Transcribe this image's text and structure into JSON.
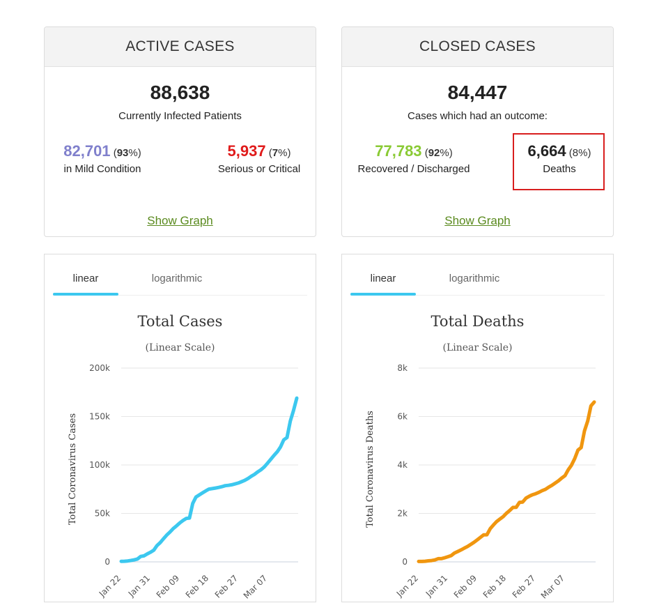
{
  "active_cases": {
    "header": "ACTIVE CASES",
    "total": "88,638",
    "total_label": "Currently Infected Patients",
    "mild": {
      "value": "82,701",
      "pct": "93",
      "label": "in Mild Condition",
      "color": "#8080cc"
    },
    "serious": {
      "value": "5,937",
      "pct": "7",
      "label": "Serious or Critical",
      "color": "#e01b1b"
    },
    "show_graph": "Show Graph"
  },
  "closed_cases": {
    "header": "CLOSED CASES",
    "total": "84,447",
    "total_label": "Cases which had an outcome:",
    "recovered": {
      "value": "77,783",
      "pct": "92",
      "label": "Recovered / Discharged",
      "color": "#8aca34"
    },
    "deaths": {
      "value": "6,664",
      "pct": "8",
      "label": "Deaths",
      "color": "#222222"
    },
    "show_graph": "Show Graph"
  },
  "tabs": {
    "linear": "linear",
    "logarithmic": "logarithmic"
  },
  "chart_data": [
    {
      "type": "line",
      "title": "Total Cases",
      "subtitle": "(Linear Scale)",
      "xlabel": "",
      "ylabel": "Total Coronavirus Cases",
      "color": "#3cc8ef",
      "ylim": [
        0,
        200000
      ],
      "yticks": [
        0,
        50000,
        100000,
        150000,
        200000
      ],
      "ytick_labels": [
        "0",
        "50k",
        "100k",
        "150k",
        "200k"
      ],
      "xtick_labels": [
        "Jan 22",
        "Jan 31",
        "Feb 09",
        "Feb 18",
        "Feb 27",
        "Mar 07"
      ],
      "xtick_index": [
        0,
        9,
        18,
        27,
        36,
        45
      ],
      "x_count": 55,
      "values": [
        555,
        654,
        941,
        1434,
        2118,
        2927,
        5578,
        6166,
        8234,
        9927,
        12038,
        16787,
        19881,
        23892,
        27635,
        30817,
        34391,
        37120,
        40150,
        42762,
        44802,
        45221,
        60368,
        66885,
        69030,
        71224,
        73258,
        75136,
        75639,
        76197,
        76823,
        77595,
        78599,
        78985,
        79570,
        80415,
        81397,
        82756,
        84124,
        86013,
        88371,
        90309,
        92844,
        95124,
        97886,
        101800,
        105836,
        109821,
        113590,
        118620,
        125875,
        128343,
        145193,
        156094,
        169000
      ]
    },
    {
      "type": "line",
      "title": "Total Deaths",
      "subtitle": "(Linear Scale)",
      "xlabel": "",
      "ylabel": "Total Coronavirus Deaths",
      "color": "#f0960f",
      "ylim": [
        0,
        8000
      ],
      "yticks": [
        0,
        2000,
        4000,
        6000,
        8000
      ],
      "ytick_labels": [
        "0",
        "2k",
        "4k",
        "6k",
        "8k"
      ],
      "xtick_labels": [
        "Jan 22",
        "Jan 31",
        "Feb 09",
        "Feb 18",
        "Feb 27",
        "Mar 07"
      ],
      "xtick_index": [
        0,
        9,
        18,
        27,
        36,
        45
      ],
      "x_count": 55,
      "values": [
        17,
        18,
        26,
        42,
        56,
        82,
        131,
        133,
        171,
        213,
        259,
        362,
        426,
        492,
        564,
        634,
        719,
        806,
        906,
        1013,
        1113,
        1118,
        1371,
        1523,
        1666,
        1770,
        1868,
        2007,
        2122,
        2247,
        2251,
        2458,
        2469,
        2629,
        2708,
        2770,
        2814,
        2872,
        2941,
        2996,
        3085,
        3160,
        3254,
        3348,
        3460,
        3558,
        3802,
        3988,
        4262,
        4615,
        4720,
        5404,
        5819,
        6440,
        6600
      ]
    }
  ]
}
